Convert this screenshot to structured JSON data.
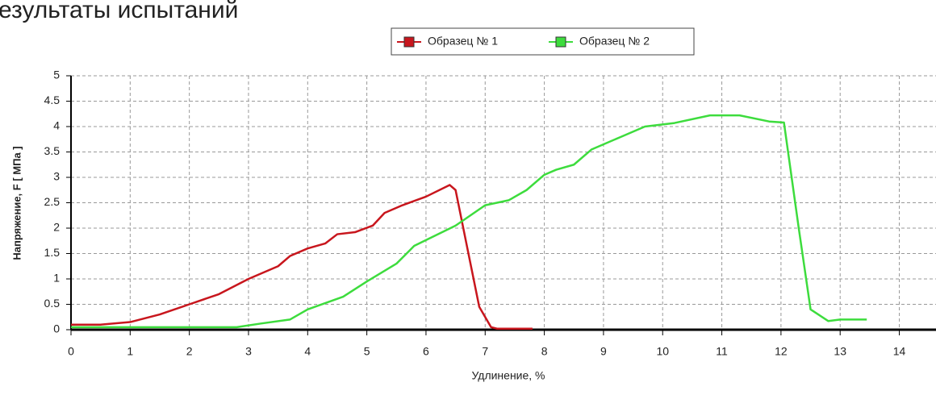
{
  "chart_data": {
    "type": "line",
    "title": "езультаты испытаний",
    "xlabel": "Удлинение, %",
    "ylabel": "Напряжение, F [  МПа ]",
    "xlim": [
      0,
      14.62
    ],
    "ylim": [
      0,
      5
    ],
    "xticks": [
      0,
      1,
      2,
      3,
      4,
      5,
      6,
      7,
      8,
      9,
      10,
      11,
      12,
      13,
      14
    ],
    "yticks": [
      0,
      0.5,
      1,
      1.5,
      2,
      2.5,
      3,
      3.5,
      4,
      4.5,
      5
    ],
    "grid": true,
    "legend": "top",
    "series": [
      {
        "name": "Образец № 1",
        "color": "#c8161d",
        "x": [
          0,
          0.5,
          1,
          1.5,
          2,
          2.5,
          3,
          3.5,
          3.7,
          4,
          4.3,
          4.5,
          4.8,
          5.1,
          5.3,
          5.6,
          6,
          6.4,
          6.5,
          6.7,
          6.9,
          7.1,
          7.2,
          7.8
        ],
        "values": [
          0.1,
          0.1,
          0.15,
          0.3,
          0.5,
          0.7,
          1.0,
          1.25,
          1.45,
          1.6,
          1.7,
          1.88,
          1.92,
          2.05,
          2.3,
          2.45,
          2.62,
          2.85,
          2.75,
          1.6,
          0.45,
          0.05,
          0.02,
          0.02
        ]
      },
      {
        "name": "Образец № 2",
        "color": "#3ddc3d",
        "x": [
          0,
          1,
          2,
          2.8,
          3.2,
          3.7,
          4,
          4.6,
          5,
          5.5,
          5.8,
          6.5,
          7,
          7.4,
          7.7,
          8,
          8.2,
          8.5,
          8.8,
          9.3,
          9.7,
          10.2,
          10.8,
          11.3,
          11.8,
          12.05,
          12.3,
          12.5,
          12.8,
          13.0,
          13.45
        ],
        "values": [
          0.05,
          0.05,
          0.05,
          0.05,
          0.12,
          0.2,
          0.4,
          0.65,
          0.95,
          1.3,
          1.65,
          2.05,
          2.45,
          2.55,
          2.75,
          3.05,
          3.15,
          3.25,
          3.55,
          3.8,
          4.0,
          4.07,
          4.22,
          4.22,
          4.1,
          4.08,
          2.0,
          0.4,
          0.17,
          0.2,
          0.2
        ]
      }
    ]
  }
}
